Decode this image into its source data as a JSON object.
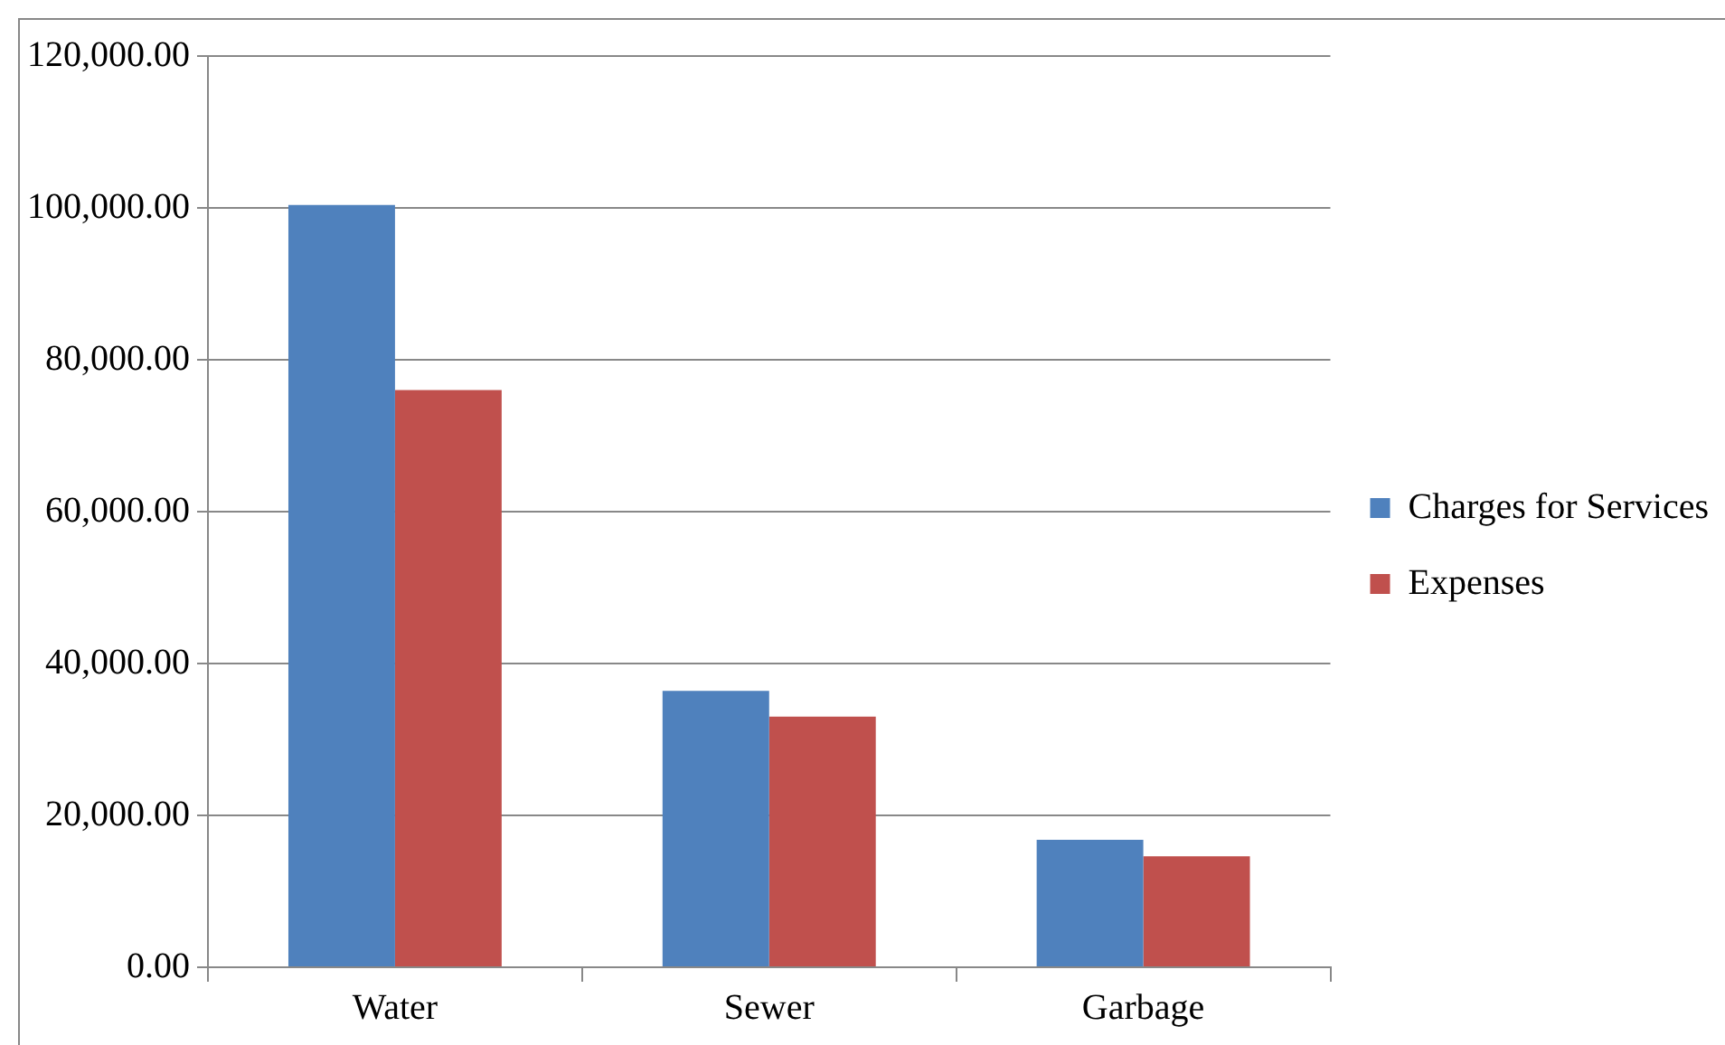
{
  "chart_data": {
    "type": "bar",
    "categories": [
      "Water",
      "Sewer",
      "Garbage"
    ],
    "series": [
      {
        "name": "Charges for Services",
        "color": "#4f81bd",
        "values": [
          100400,
          36400,
          16800
        ]
      },
      {
        "name": "Expenses",
        "color": "#c0504d",
        "values": [
          76000,
          33000,
          14600
        ]
      }
    ],
    "ylim": [
      0,
      120000
    ],
    "yticks": [
      {
        "value": 0,
        "label": "0.00"
      },
      {
        "value": 20000,
        "label": "20,000.00"
      },
      {
        "value": 40000,
        "label": "40,000.00"
      },
      {
        "value": 60000,
        "label": "60,000.00"
      },
      {
        "value": 80000,
        "label": "80,000.00"
      },
      {
        "value": 100000,
        "label": "100,000.00"
      },
      {
        "value": 120000,
        "label": "120,000.00"
      }
    ],
    "grid": "y",
    "legend": "right"
  }
}
